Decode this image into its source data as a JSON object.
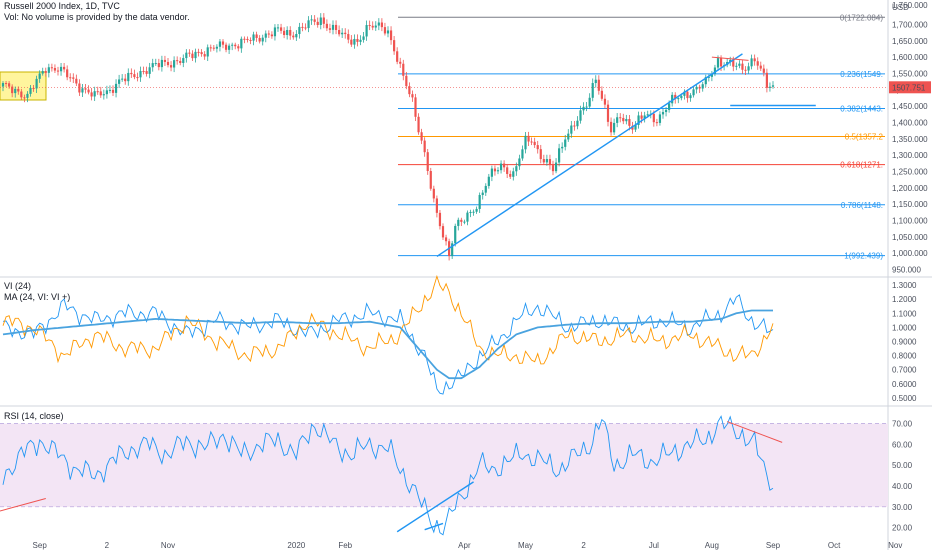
{
  "header": {
    "title": "Russell 2000 Index, 1D, TVC",
    "vol_note": "Vol: No volume is provided by the data vendor.",
    "vi_title": "VI (24)",
    "ma_title": "MA (24, VI: VI +)",
    "rsi_title": "RSI (14, close)"
  },
  "price_axis": {
    "currency": "USD",
    "ticks": [
      "1,760.000",
      "1,700.000",
      "1,650.000",
      "1,600.000",
      "1,550.000",
      "1,500.000",
      "1,450.000",
      "1,400.000",
      "1,350.000",
      "1,300.000",
      "1,250.000",
      "1,200.000",
      "1,150.000",
      "1,100.000",
      "1,050.000",
      "1,000.000",
      "950.000"
    ],
    "last_price": "1507.751",
    "last_price_color": "#ef5350"
  },
  "vi_axis": {
    "ticks": [
      "1.3000",
      "1.2000",
      "1.1000",
      "1.0000",
      "0.9000",
      "0.8000",
      "0.7000",
      "0.6000",
      "0.5000"
    ]
  },
  "rsi_axis": {
    "ticks": [
      "70.00",
      "60.00",
      "50.00",
      "40.00",
      "30.00",
      "20.00"
    ]
  },
  "time_axis": {
    "labels": [
      "Sep",
      "2",
      "Nov",
      "2020",
      "Feb",
      "Apr",
      "May",
      "2",
      "Jul",
      "Aug",
      "Sep",
      "Oct",
      "Nov"
    ]
  },
  "fib_levels": [
    {
      "label": "0(1722.084)",
      "value": 1722.084,
      "color": "#787b86"
    },
    {
      "label": "0.236(1549.",
      "value": 1549,
      "color": "#2196f3"
    },
    {
      "label": "0.382(1443.",
      "value": 1443,
      "color": "#2196f3"
    },
    {
      "label": "0.5(1357.2",
      "value": 1357.2,
      "color": "#ff9800"
    },
    {
      "label": "0.618(1271.",
      "value": 1271,
      "color": "#f44336"
    },
    {
      "label": "0.786(1148.",
      "value": 1148,
      "color": "#2196f3"
    },
    {
      "label": "1(992.439)",
      "value": 992.439,
      "color": "#2196f3"
    }
  ],
  "colors": {
    "up": "#26a69a",
    "down": "#ef5350",
    "vi_plus": "#2196f3",
    "vi_minus": "#ff9800",
    "ma": "#4aa3df",
    "rsi": "#2196f3",
    "rsi_band": "#f3e5f5",
    "trend": "#2196f3",
    "divergence": "#ef5350",
    "highlight_box": "#fff59d"
  },
  "chart_data": [
    {
      "type": "candlestick",
      "title": "Russell 2000 Index, 1D, TVC",
      "ylim": [
        930,
        1775
      ],
      "price_keypoints": [
        [
          0,
          1510
        ],
        [
          4,
          1500
        ],
        [
          8,
          1480
        ],
        [
          12,
          1540
        ],
        [
          14,
          1570
        ],
        [
          18,
          1565
        ],
        [
          22,
          1535
        ],
        [
          26,
          1505
        ],
        [
          30,
          1480
        ],
        [
          34,
          1495
        ],
        [
          38,
          1525
        ],
        [
          42,
          1540
        ],
        [
          46,
          1560
        ],
        [
          52,
          1580
        ],
        [
          58,
          1590
        ],
        [
          64,
          1615
        ],
        [
          70,
          1630
        ],
        [
          76,
          1640
        ],
        [
          82,
          1655
        ],
        [
          86,
          1670
        ],
        [
          90,
          1680
        ],
        [
          94,
          1670
        ],
        [
          100,
          1700
        ],
        [
          104,
          1715
        ],
        [
          108,
          1685
        ],
        [
          112,
          1660
        ],
        [
          116,
          1650
        ],
        [
          120,
          1690
        ],
        [
          124,
          1700
        ],
        [
          126,
          1680
        ],
        [
          130,
          1560
        ],
        [
          134,
          1470
        ],
        [
          138,
          1300
        ],
        [
          141,
          1150
        ],
        [
          144,
          1060
        ],
        [
          146,
          1000
        ],
        [
          148,
          1080
        ],
        [
          151,
          1100
        ],
        [
          155,
          1150
        ],
        [
          159,
          1230
        ],
        [
          163,
          1270
        ],
        [
          167,
          1240
        ],
        [
          171,
          1340
        ],
        [
          173,
          1350
        ],
        [
          176,
          1300
        ],
        [
          180,
          1250
        ],
        [
          184,
          1360
        ],
        [
          188,
          1410
        ],
        [
          191,
          1450
        ],
        [
          194,
          1540
        ],
        [
          196,
          1480
        ],
        [
          199,
          1370
        ],
        [
          202,
          1420
        ],
        [
          206,
          1390
        ],
        [
          210,
          1420
        ],
        [
          214,
          1410
        ],
        [
          218,
          1460
        ],
        [
          222,
          1480
        ],
        [
          226,
          1500
        ],
        [
          230,
          1520
        ],
        [
          234,
          1590
        ],
        [
          238,
          1580
        ],
        [
          242,
          1560
        ],
        [
          244,
          1580
        ],
        [
          246,
          1600
        ],
        [
          248,
          1560
        ],
        [
          250,
          1510
        ],
        [
          252,
          1505
        ]
      ]
    },
    {
      "type": "line",
      "title": "VI (24)",
      "ylim": [
        0.45,
        1.35
      ],
      "series": [
        {
          "name": "VI +",
          "x_anchor": [
            0,
            10,
            20,
            30,
            40,
            50,
            60,
            70,
            80,
            90,
            100,
            110,
            120,
            130,
            138,
            142,
            146,
            150,
            156,
            162,
            168,
            175,
            185,
            195,
            205,
            215,
            225,
            235,
            240,
            245,
            252
          ],
          "values": [
            1.0,
            0.95,
            1.15,
            1.05,
            1.1,
            1.1,
            0.95,
            1.05,
            1.0,
            1.05,
            0.95,
            1.05,
            1.1,
            1.05,
            0.8,
            0.55,
            0.6,
            0.65,
            0.8,
            0.9,
            1.05,
            1.15,
            1.0,
            1.05,
            1.0,
            1.05,
            1.0,
            1.1,
            1.2,
            1.05,
            0.95
          ]
        },
        {
          "name": "VI -",
          "x_anchor": [
            0,
            10,
            20,
            30,
            40,
            50,
            60,
            70,
            80,
            90,
            100,
            110,
            120,
            130,
            138,
            142,
            146,
            150,
            156,
            162,
            168,
            175,
            185,
            195,
            205,
            215,
            225,
            235,
            240,
            245,
            252
          ],
          "values": [
            1.05,
            1.0,
            0.8,
            0.95,
            0.85,
            0.85,
            1.05,
            0.9,
            0.8,
            0.85,
            1.05,
            0.95,
            0.85,
            0.95,
            1.2,
            1.3,
            1.25,
            1.1,
            0.85,
            0.8,
            0.8,
            0.75,
            0.95,
            0.9,
            0.95,
            0.9,
            0.95,
            0.85,
            0.8,
            0.8,
            1.0
          ]
        },
        {
          "name": "MA",
          "x_anchor": [
            0,
            10,
            20,
            30,
            40,
            50,
            60,
            70,
            80,
            90,
            100,
            110,
            120,
            130,
            138,
            142,
            146,
            150,
            156,
            162,
            168,
            175,
            185,
            195,
            205,
            215,
            225,
            235,
            240,
            245,
            252
          ],
          "values": [
            0.95,
            0.98,
            1.0,
            1.02,
            1.04,
            1.06,
            1.05,
            1.04,
            1.03,
            1.04,
            1.03,
            1.03,
            1.04,
            1.0,
            0.8,
            0.7,
            0.64,
            0.64,
            0.72,
            0.85,
            0.95,
            1.0,
            1.02,
            1.03,
            1.03,
            1.04,
            1.04,
            1.06,
            1.1,
            1.12,
            1.12
          ]
        }
      ]
    },
    {
      "type": "line",
      "title": "RSI (14, close)",
      "ylim": [
        15,
        78
      ],
      "band": [
        30,
        70
      ],
      "series": [
        {
          "name": "RSI",
          "x_anchor": [
            0,
            6,
            12,
            18,
            24,
            30,
            36,
            42,
            48,
            54,
            60,
            66,
            72,
            78,
            84,
            90,
            96,
            102,
            108,
            114,
            120,
            126,
            130,
            134,
            138,
            141,
            144,
            146,
            148,
            152,
            156,
            160,
            166,
            170,
            176,
            182,
            188,
            192,
            196,
            200,
            206,
            212,
            218,
            224,
            230,
            234,
            238,
            242,
            246,
            250,
            252
          ],
          "values": [
            45,
            55,
            62,
            55,
            48,
            45,
            52,
            58,
            60,
            55,
            62,
            58,
            65,
            55,
            60,
            62,
            55,
            70,
            60,
            55,
            60,
            58,
            48,
            40,
            28,
            22,
            20,
            24,
            30,
            40,
            50,
            48,
            52,
            56,
            52,
            48,
            55,
            60,
            72,
            50,
            55,
            52,
            55,
            60,
            62,
            70,
            68,
            65,
            60,
            45,
            42
          ]
        }
      ]
    }
  ]
}
